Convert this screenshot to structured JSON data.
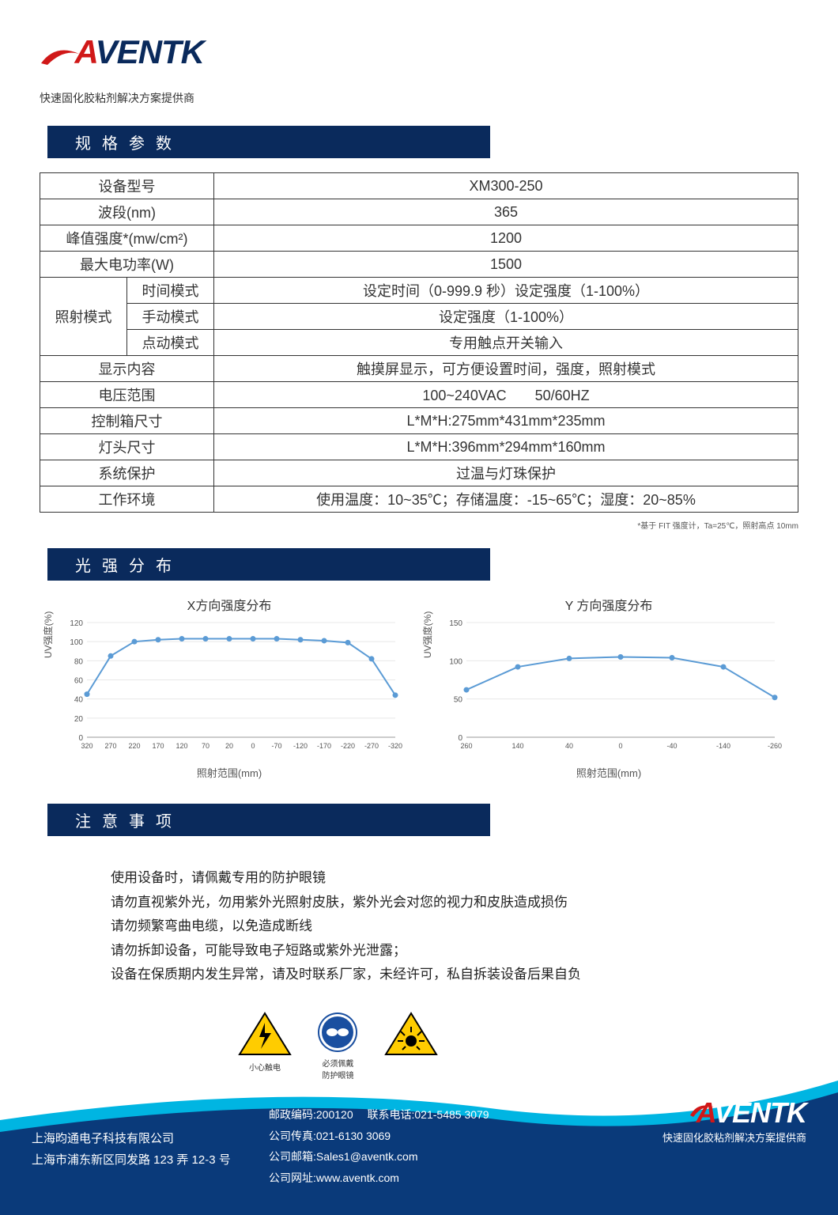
{
  "logo": {
    "a": "A",
    "rest": "VENTK"
  },
  "tagline": "快速固化胶粘剂解决方案提供商",
  "sections": {
    "spec": "规格参数",
    "dist": "光强分布",
    "note": "注意事项"
  },
  "table": {
    "rows": [
      {
        "label": "设备型号",
        "value": "XM300-250"
      },
      {
        "label": "波段(nm)",
        "value": "365"
      },
      {
        "label": "峰值强度*(mw/cm²)",
        "value": "1200"
      },
      {
        "label": "最大电功率(W)",
        "value": "1500"
      }
    ],
    "mode": {
      "label": "照射模式",
      "sub": [
        {
          "k": "时间模式",
          "v": "设定时间（0-999.9 秒）设定强度（1-100%）"
        },
        {
          "k": "手动模式",
          "v": "设定强度（1-100%）"
        },
        {
          "k": "点动模式",
          "v": "专用触点开关输入"
        }
      ]
    },
    "rows2": [
      {
        "label": "显示内容",
        "value": "触摸屏显示，可方便设置时间，强度，照射模式"
      },
      {
        "label": "电压范围",
        "value": "100~240VAC　　50/60HZ"
      },
      {
        "label": "控制箱尺寸",
        "value": "L*M*H:275mm*431mm*235mm"
      },
      {
        "label": "灯头尺寸",
        "value": "L*M*H:396mm*294mm*160mm"
      },
      {
        "label": "系统保护",
        "value": "过温与灯珠保护"
      },
      {
        "label": "工作环境",
        "value": "使用温度：10~35℃；存储温度：-15~65℃；湿度：20~85%"
      }
    ]
  },
  "footnote": "*基于 FIT 强度计，Ta=25℃，照射高点 10mm",
  "charts": {
    "x": {
      "title": "X方向强度分布",
      "xlabel": "照射范围(mm)",
      "ylabel": "UV强度(%)",
      "ylim": [
        0,
        120
      ],
      "yticks": [
        0,
        20,
        40,
        60,
        80,
        100,
        120
      ],
      "xticks": [
        "320",
        "270",
        "220",
        "170",
        "120",
        "70",
        "20",
        "0",
        "-70",
        "-120",
        "-170",
        "-220",
        "-270",
        "-320"
      ],
      "xvals": [
        320,
        270,
        220,
        170,
        120,
        70,
        20,
        0,
        -70,
        -120,
        -170,
        -220,
        -270,
        -320
      ],
      "yvals": [
        45,
        85,
        100,
        102,
        103,
        103,
        103,
        103,
        103,
        102,
        101,
        99,
        82,
        44
      ],
      "line_color": "#5b9bd5",
      "marker_color": "#5b9bd5",
      "grid_color": "#e8e8e8"
    },
    "y": {
      "title": "Y 方向强度分布",
      "xlabel": "照射范围(mm)",
      "ylabel": "UV强度(%)",
      "ylim": [
        0,
        150
      ],
      "yticks": [
        0,
        50,
        100,
        150
      ],
      "xticks": [
        "260",
        "140",
        "40",
        "0",
        "-40",
        "-140",
        "-260"
      ],
      "xvals": [
        260,
        140,
        40,
        0,
        -40,
        -140,
        -260
      ],
      "yvals": [
        62,
        92,
        103,
        105,
        104,
        92,
        52
      ],
      "line_color": "#5b9bd5",
      "marker_color": "#5b9bd5",
      "grid_color": "#e8e8e8"
    }
  },
  "notes": [
    "使用设备时，请佩戴专用的防护眼镜",
    "请勿直视紫外光，勿用紫外光照射皮肤，紫外光会对您的视力和皮肤造成损伤",
    "请勿频繁弯曲电缆，以免造成断线",
    "请勿拆卸设备，可能导致电子短路或紫外光泄露；",
    "设备在保质期内发生异常，请及时联系厂家，未经许可，私自拆装设备后果自负"
  ],
  "warnings": {
    "shock": "小心触电",
    "goggles_top": "必须佩戴",
    "goggles_bot": "防护眼镜",
    "uv": ""
  },
  "footer": {
    "company": "上海昀通电子科技有限公司",
    "address": "上海市浦东新区同发路 123 弄 12-3 号",
    "post_label": "邮政编码:",
    "post": "200120",
    "tel_label": "联系电话:",
    "tel": "021-5485 3079",
    "fax_label": "公司传真:",
    "fax": "021-6130 3069",
    "email_label": "公司邮箱:",
    "email": "Sales1@aventk.com",
    "web_label": "公司网址:",
    "web": "www.aventk.com",
    "tag": "快速固化胶粘剂解决方案提供商",
    "swoosh_top": "#00b5e2",
    "swoosh_main": "#0a3a7a"
  }
}
